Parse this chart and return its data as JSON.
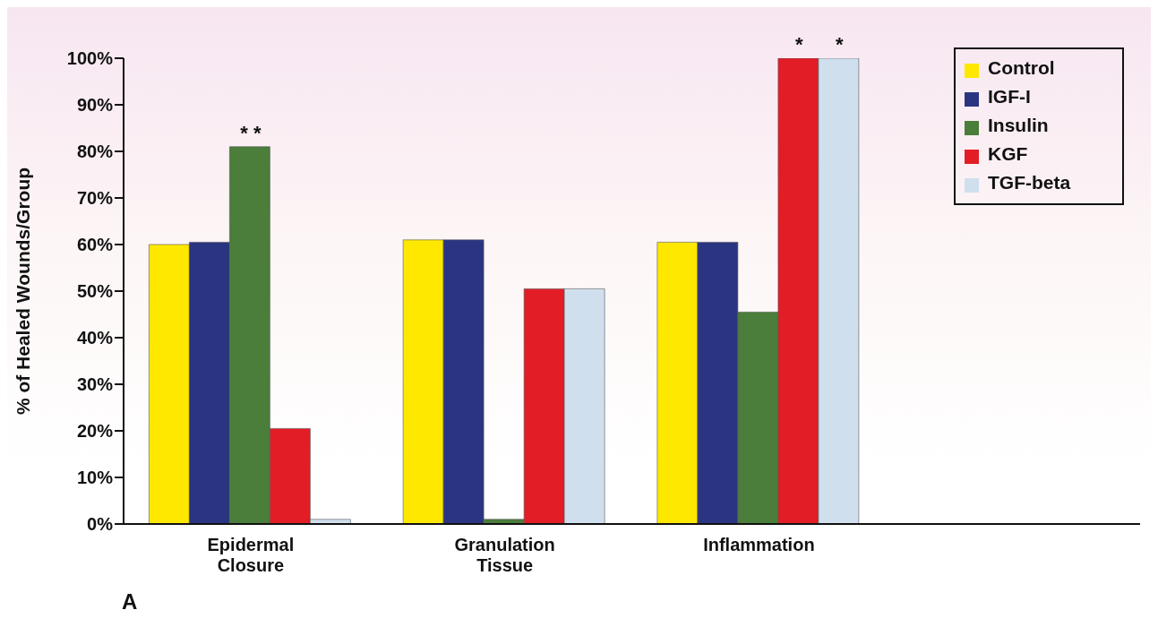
{
  "chart_data": {
    "type": "bar",
    "ylabel": "% of Healed Wounds/Group",
    "categories": [
      "Epidermal Closure",
      "Granulation Tissue",
      "Inflammation",
      null
    ],
    "series": [
      {
        "name": "Control",
        "color": "#ffe800",
        "values": [
          60,
          61,
          60.5,
          null
        ]
      },
      {
        "name": "IGF-I",
        "color": "#2b3481",
        "values": [
          60.5,
          61,
          60.5,
          null
        ]
      },
      {
        "name": "Insulin",
        "color": "#4a7e3a",
        "values": [
          81,
          1,
          45.5,
          null
        ]
      },
      {
        "name": "KGF",
        "color": "#e21d26",
        "values": [
          20.5,
          50.5,
          100,
          null
        ]
      },
      {
        "name": "TGF-beta",
        "color": "#d0dfee",
        "values": [
          1,
          50.5,
          100,
          null
        ]
      }
    ],
    "ylim": [
      0,
      100
    ],
    "yticks": [
      {
        "value": 0,
        "label": "0%"
      },
      {
        "value": 10,
        "label": "10%"
      },
      {
        "value": 20,
        "label": "20%"
      },
      {
        "value": 30,
        "label": "30%"
      },
      {
        "value": 40,
        "label": "40%"
      },
      {
        "value": 50,
        "label": "50%"
      },
      {
        "value": 60,
        "label": "60%"
      },
      {
        "value": 70,
        "label": "70%"
      },
      {
        "value": 80,
        "label": "80%"
      },
      {
        "value": 90,
        "label": "90%"
      },
      {
        "value": 100,
        "label": "100%"
      }
    ],
    "grid": false,
    "legend": "top right",
    "annotations": [
      {
        "text": "* *",
        "x": "Epidermal Closure",
        "y": 81
      },
      "*",
      "*",
      "A"
    ]
  }
}
